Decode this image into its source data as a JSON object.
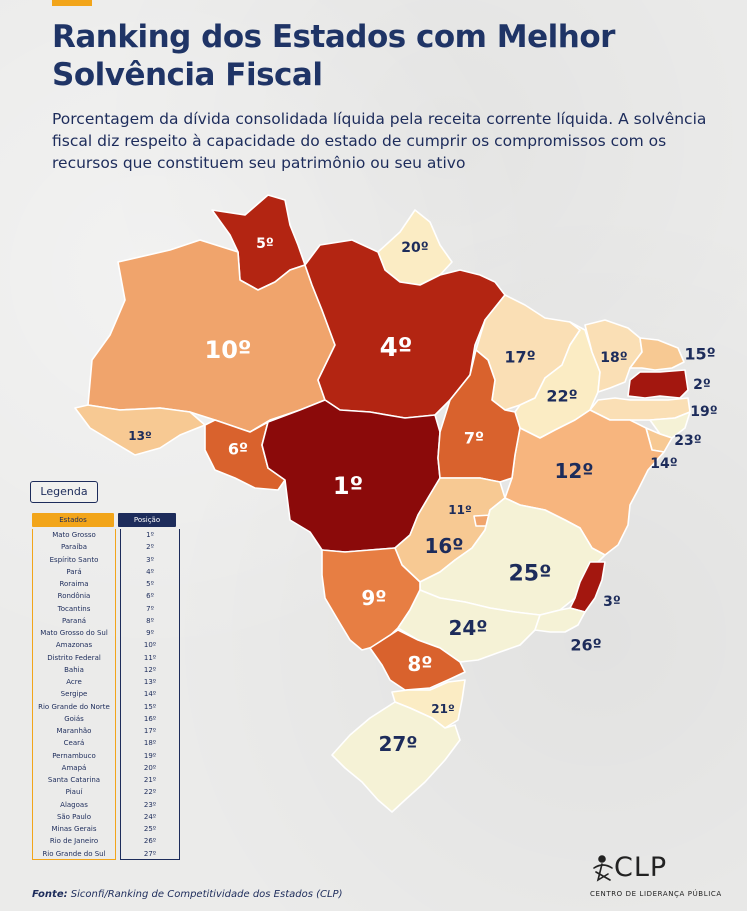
{
  "title": "Ranking dos Estados com Melhor Solvência Fiscal",
  "subtitle": "Porcentagem da dívida consolidada líquida pela receita corrente líquida. A solvência fiscal diz respeito à capacidade do estado de cumprir os compromissos com os recursos que constituem seu patrimônio ou seu ativo",
  "legend": {
    "box_label": "Legenda",
    "col_state": "Estados",
    "col_position": "Posição",
    "rows": [
      {
        "state": "Mato Grosso",
        "position": "1º"
      },
      {
        "state": "Paraíba",
        "position": "2º"
      },
      {
        "state": "Espírito Santo",
        "position": "3º"
      },
      {
        "state": "Pará",
        "position": "4º"
      },
      {
        "state": "Roraima",
        "position": "5º"
      },
      {
        "state": "Rondônia",
        "position": "6º"
      },
      {
        "state": "Tocantins",
        "position": "7º"
      },
      {
        "state": "Paraná",
        "position": "8º"
      },
      {
        "state": "Mato Grosso do Sul",
        "position": "9º"
      },
      {
        "state": "Amazonas",
        "position": "10º"
      },
      {
        "state": "Distrito Federal",
        "position": "11º"
      },
      {
        "state": "Bahia",
        "position": "12º"
      },
      {
        "state": "Acre",
        "position": "13º"
      },
      {
        "state": "Sergipe",
        "position": "14º"
      },
      {
        "state": "Rio Grande do Norte",
        "position": "15º"
      },
      {
        "state": "Goiás",
        "position": "16º"
      },
      {
        "state": "Maranhão",
        "position": "17º"
      },
      {
        "state": "Ceará",
        "position": "18º"
      },
      {
        "state": "Pernambuco",
        "position": "19º"
      },
      {
        "state": "Amapá",
        "position": "20º"
      },
      {
        "state": "Santa Catarina",
        "position": "21º"
      },
      {
        "state": "Piauí",
        "position": "22º"
      },
      {
        "state": "Alagoas",
        "position": "23º"
      },
      {
        "state": "São Paulo",
        "position": "24º"
      },
      {
        "state": "Minas Gerais",
        "position": "25º"
      },
      {
        "state": "Rio de Janeiro",
        "position": "26º"
      },
      {
        "state": "Rio Grande do Sul",
        "position": "27º"
      }
    ]
  },
  "map_labels": {
    "roraima": "5º",
    "amapa": "20º",
    "amazonas": "10º",
    "para": "4º",
    "maranhao": "17º",
    "ceara": "18º",
    "rgn": "15º",
    "paraiba": "2º",
    "pernambuco": "19º",
    "alagoas": "23º",
    "sergipe": "14º",
    "piaui": "22º",
    "acre": "13º",
    "rondonia": "6º",
    "tocantins": "7º",
    "mato_grosso": "1º",
    "bahia": "12º",
    "df": "11º",
    "goias": "16º",
    "minas": "25º",
    "espirito_santo": "3º",
    "ms": "9º",
    "sao_paulo": "24º",
    "rio": "26º",
    "parana": "8º",
    "santa_catarina": "21º",
    "rgs": "27º"
  },
  "colors": {
    "rank_1_5": "#8b0a0a",
    "rank_2": "#a3170f",
    "rank_4_5": "#b32512",
    "rank_6_7": "#d9622d",
    "rank_8_9": "#e77e43",
    "rank_10": "#f0a46c",
    "rank_11_16": "#f7c993",
    "rank_17_19": "#fadfb5",
    "rank_20_22": "#fbecc4",
    "rank_24_27": "#f5f2d6",
    "title": "#1f3466",
    "accent": "#f2a51a"
  },
  "source": {
    "prefix": "Fonte:",
    "text": " Siconfi/Ranking de Competitividade dos Estados (CLP)"
  },
  "logo": {
    "text": "CLP",
    "subtitle": "CENTRO DE LIDERANÇA PÚBLICA"
  }
}
